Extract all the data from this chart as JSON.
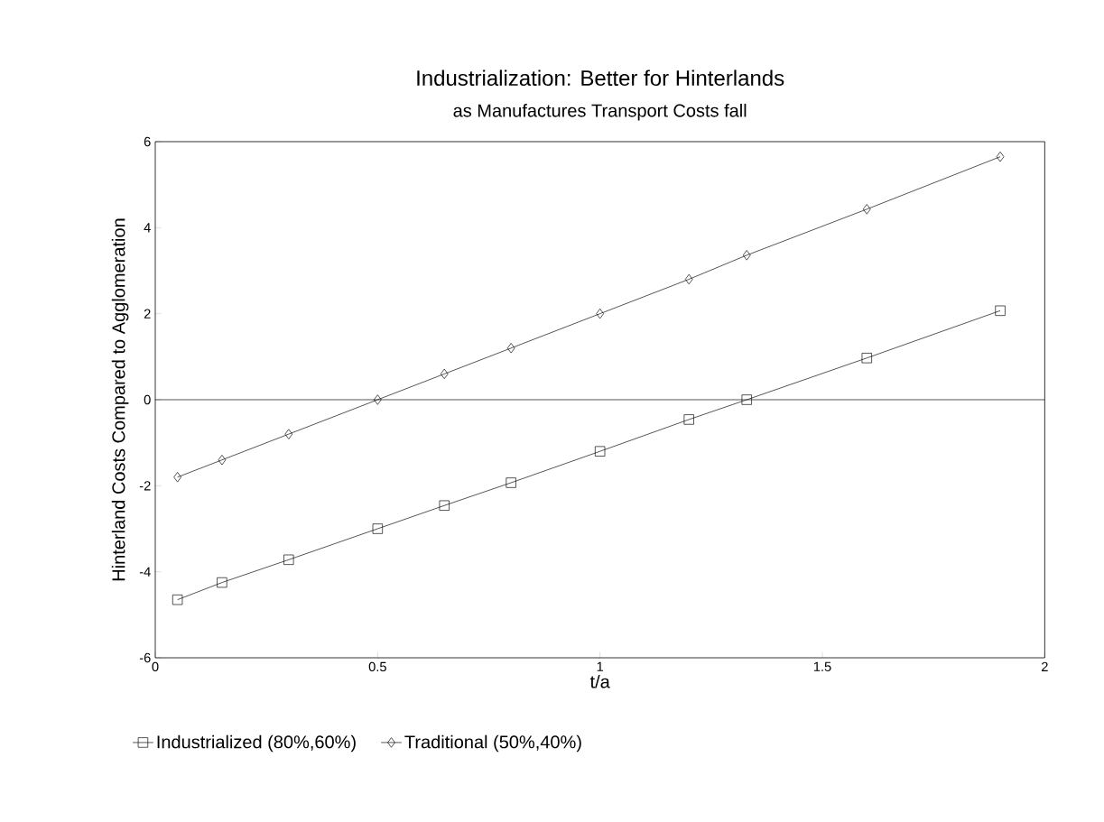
{
  "chart_data": {
    "type": "line",
    "title": "Industrialization: Better for Hinterlands",
    "subtitle": "as Manufactures Transport Costs fall",
    "xlabel": "t/a",
    "ylabel": "Hinterland Costs Compared to Agglomeration",
    "x": [
      0.05,
      0.15,
      0.3,
      0.5,
      0.65,
      0.8,
      1.0,
      1.2,
      1.33,
      1.6,
      1.9
    ],
    "series": [
      {
        "name": "Industrialized (80%,60%)",
        "color": "#000000",
        "marker": "square",
        "values": [
          -4.65,
          -4.25,
          -3.72,
          -3.0,
          -2.46,
          -1.93,
          -1.2,
          -0.46,
          0,
          0.97,
          2.07
        ]
      },
      {
        "name": "Traditional (50%,40%)",
        "color": "#000000",
        "marker": "diamond",
        "values": [
          -1.8,
          -1.4,
          -0.8,
          0,
          0.6,
          1.2,
          2.0,
          2.8,
          3.36,
          4.43,
          5.65
        ]
      }
    ],
    "xlim": [
      0,
      2
    ],
    "ylim": [
      -6,
      6
    ],
    "xticks": [
      0,
      0.5,
      1,
      1.5,
      2
    ],
    "yticks": [
      -6,
      -4,
      -2,
      0,
      2,
      4,
      6
    ],
    "ref_lines": [
      {
        "axis": "y",
        "value": 0,
        "color": "#000000"
      }
    ],
    "grid": false,
    "legend": "bottom",
    "line_style": "solid"
  }
}
